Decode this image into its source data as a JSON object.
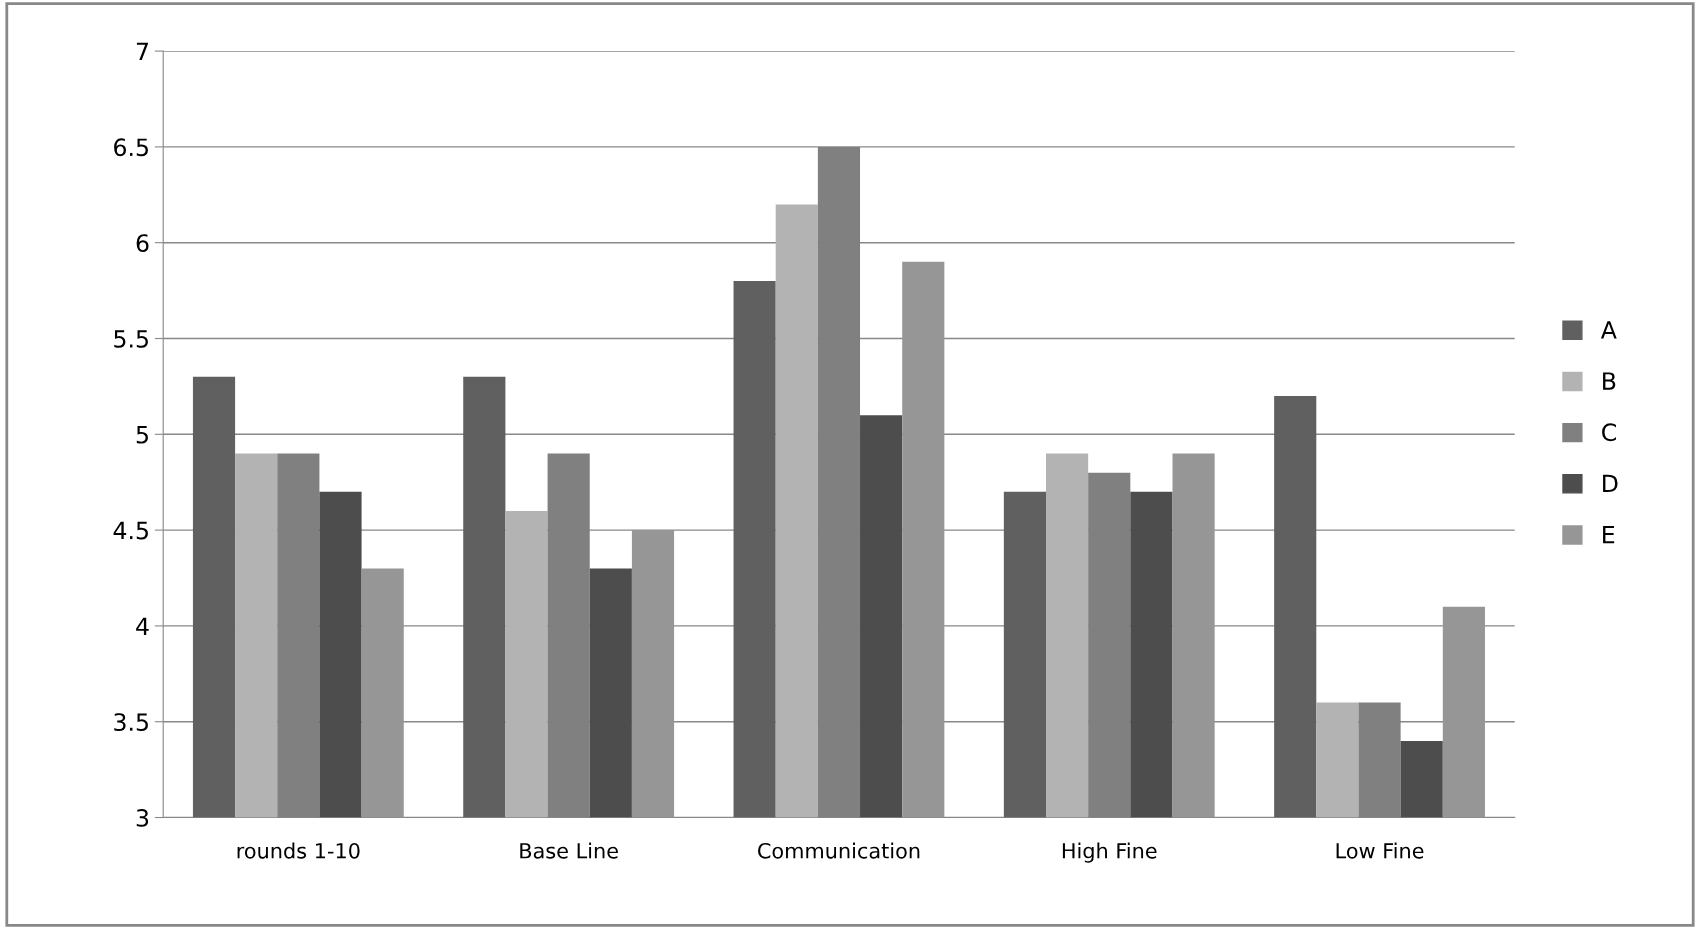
{
  "chart_data": {
    "type": "bar",
    "categories": [
      "rounds 1-10",
      "Base Line",
      "Communication",
      "High Fine",
      "Low Fine"
    ],
    "series": [
      {
        "name": "A",
        "color": "#606060",
        "values": [
          5.3,
          5.3,
          5.8,
          4.7,
          5.2
        ]
      },
      {
        "name": "B",
        "color": "#b3b3b3",
        "values": [
          4.9,
          4.6,
          6.2,
          4.9,
          3.6
        ]
      },
      {
        "name": "C",
        "color": "#808080",
        "values": [
          4.9,
          4.9,
          6.5,
          4.8,
          3.6
        ]
      },
      {
        "name": "D",
        "color": "#4d4d4d",
        "values": [
          4.7,
          4.3,
          5.1,
          4.7,
          3.4
        ]
      },
      {
        "name": "E",
        "color": "#969696",
        "values": [
          4.3,
          4.5,
          5.9,
          4.9,
          4.1
        ]
      }
    ],
    "ylim": [
      3,
      7
    ],
    "yticks": [
      3,
      3.5,
      4,
      4.5,
      5,
      5.5,
      6,
      6.5,
      7
    ],
    "grid": "y",
    "legend": "right"
  }
}
